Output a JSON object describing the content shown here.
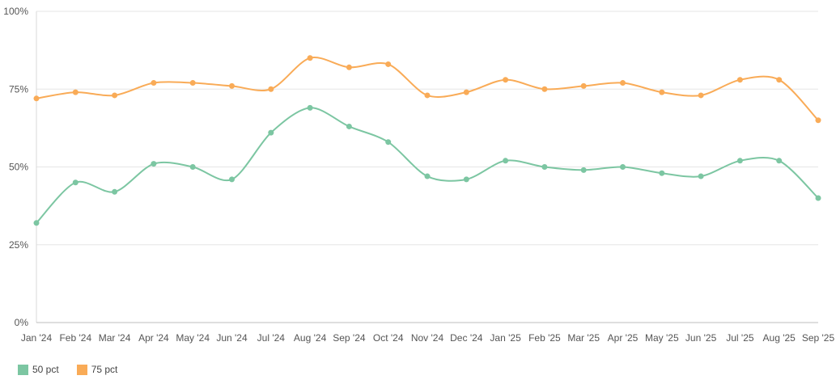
{
  "chart_data": {
    "type": "line",
    "title": "",
    "xlabel": "",
    "ylabel": "",
    "categories": [
      "Jan '24",
      "Feb '24",
      "Mar '24",
      "Apr '24",
      "May '24",
      "Jun '24",
      "Jul '24",
      "Aug '24",
      "Sep '24",
      "Oct '24",
      "Nov '24",
      "Dec '24",
      "Jan '25",
      "Feb '25",
      "Mar '25",
      "Apr '25",
      "May '25",
      "Jun '25",
      "Jul '25",
      "Aug '25",
      "Sep '25"
    ],
    "ylim": [
      0,
      100
    ],
    "y_ticks": [
      0,
      25,
      50,
      75,
      100
    ],
    "y_tick_labels": [
      "0%",
      "25%",
      "50%",
      "75%",
      "100%"
    ],
    "grid": true,
    "legend_position": "bottom-left",
    "series": [
      {
        "name": "50 pct",
        "color": "#7cc6a2",
        "values": [
          32,
          45,
          42,
          51,
          50,
          46,
          61,
          69,
          63,
          58,
          47,
          46,
          52,
          50,
          49,
          50,
          48,
          47,
          52,
          52,
          40
        ]
      },
      {
        "name": "75 pct",
        "color": "#f9ab57",
        "values": [
          72,
          74,
          73,
          77,
          77,
          76,
          75,
          85,
          82,
          83,
          73,
          74,
          78,
          75,
          76,
          77,
          74,
          73,
          78,
          78,
          65
        ]
      }
    ]
  }
}
